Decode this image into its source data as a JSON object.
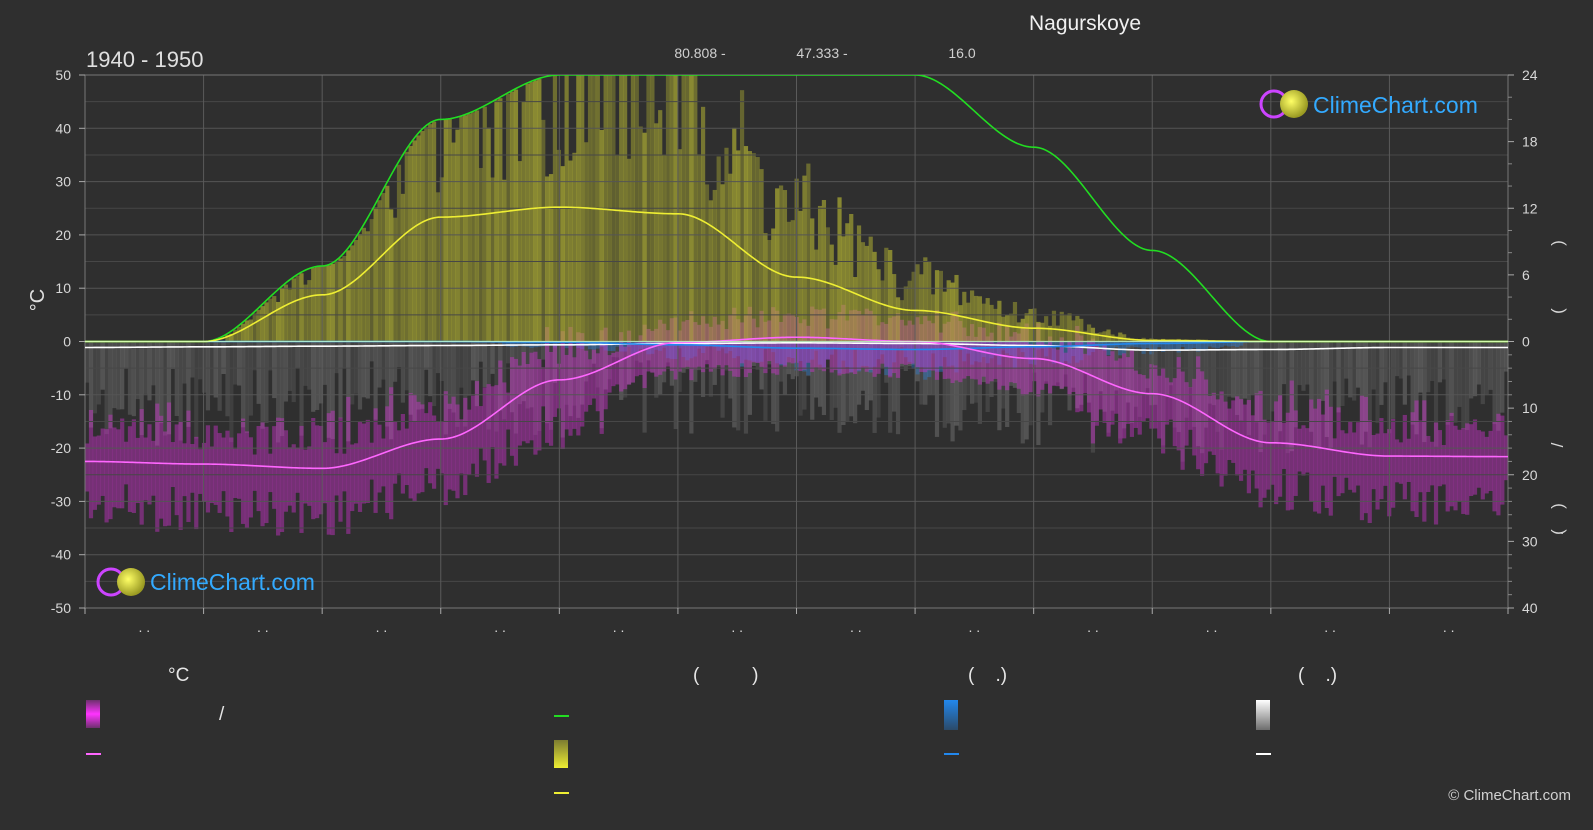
{
  "header": {
    "location": "Nagurskoye",
    "period": "1940 - 1950",
    "coord_lat": "80.808 -",
    "coord_lon": "47.333 -",
    "elevation": "16.0"
  },
  "watermark": {
    "brand": "ClimeChart.com",
    "copyright": "© ClimeChart.com"
  },
  "legend": {
    "col1_head": "°C",
    "col1_slash": "/",
    "col2_head": "(          )",
    "col3_head": "(    .)",
    "col4_head": "(    .)"
  },
  "colors": {
    "background": "#2f2f2f",
    "temp_line": "#ff66ff",
    "temp_band": "#cc33cc",
    "daylight": "#22dd22",
    "sunshine": "#eeee33",
    "sunshine_band": "#bbbb33",
    "rain": "#2288ee",
    "snow": "#dddddd"
  },
  "chart_data": {
    "type": "line",
    "title": "Nagurskoye",
    "subtitle": "1940 - 1950",
    "ylabel": "°C",
    "ylim": [
      -50,
      50
    ],
    "y_ticks": [
      50,
      40,
      30,
      20,
      10,
      0,
      -10,
      -20,
      -30,
      -40,
      -50
    ],
    "y2_ticks_upper": [
      24,
      18,
      12,
      6,
      0
    ],
    "y2_ticks_lower": [
      10,
      20,
      30,
      40
    ],
    "y2_upper_lim": [
      0,
      24
    ],
    "y2_lower_lim": [
      0,
      40
    ],
    "x_month_labels": [
      ". .",
      ". .",
      ". .",
      ". .",
      ". .",
      ". .",
      ". .",
      ". .",
      ". .",
      ". .",
      ". .",
      ". ."
    ],
    "x_months": [
      1,
      2,
      3,
      4,
      5,
      6,
      7,
      8,
      9,
      10,
      11,
      12
    ],
    "right_axis_glyphs": [
      ")",
      "(",
      "/",
      ")",
      "(",
      "."
    ],
    "series": [
      {
        "key": "temperature",
        "x": [
          1,
          2,
          3,
          4,
          5,
          6,
          7,
          8,
          9,
          10,
          11,
          12,
          13
        ],
        "values": [
          -22.5,
          -23,
          -23.8,
          -18.3,
          -7.2,
          -0.2,
          0.8,
          0,
          -3.2,
          -9.8,
          -19,
          -21.5,
          -21.6
        ]
      },
      {
        "key": "daylight_hours",
        "x": [
          1,
          2,
          3,
          4,
          5,
          6,
          7,
          8,
          9,
          10,
          11,
          12,
          13
        ],
        "values": [
          0,
          0,
          6.8,
          20,
          24,
          24,
          24,
          24,
          17.5,
          8.2,
          0,
          0,
          0
        ]
      },
      {
        "key": "sunshine_hours",
        "x": [
          1,
          2,
          3,
          4,
          5,
          6,
          7,
          8,
          9,
          10,
          11,
          12,
          13
        ],
        "values": [
          0,
          0,
          4.2,
          11.2,
          12.1,
          11.5,
          5.8,
          2.8,
          1.2,
          0.1,
          0,
          0,
          0
        ]
      },
      {
        "key": "rain_daily_mm",
        "x": [
          1,
          2,
          3,
          4,
          5,
          6,
          7,
          8,
          9,
          10,
          11,
          12,
          13
        ],
        "values": [
          0,
          0,
          0,
          0,
          0.1,
          0.5,
          1.0,
          1.2,
          0.8,
          0.3,
          0,
          0,
          0
        ]
      },
      {
        "key": "snow_daily_mm",
        "x": [
          1,
          2,
          3,
          4,
          5,
          6,
          7,
          8,
          9,
          10,
          11,
          12,
          13
        ],
        "values": [
          0.9,
          0.8,
          0.7,
          0.6,
          0.5,
          0.3,
          0.2,
          0.3,
          0.6,
          1.3,
          1.2,
          0.9,
          0.9
        ]
      }
    ]
  }
}
